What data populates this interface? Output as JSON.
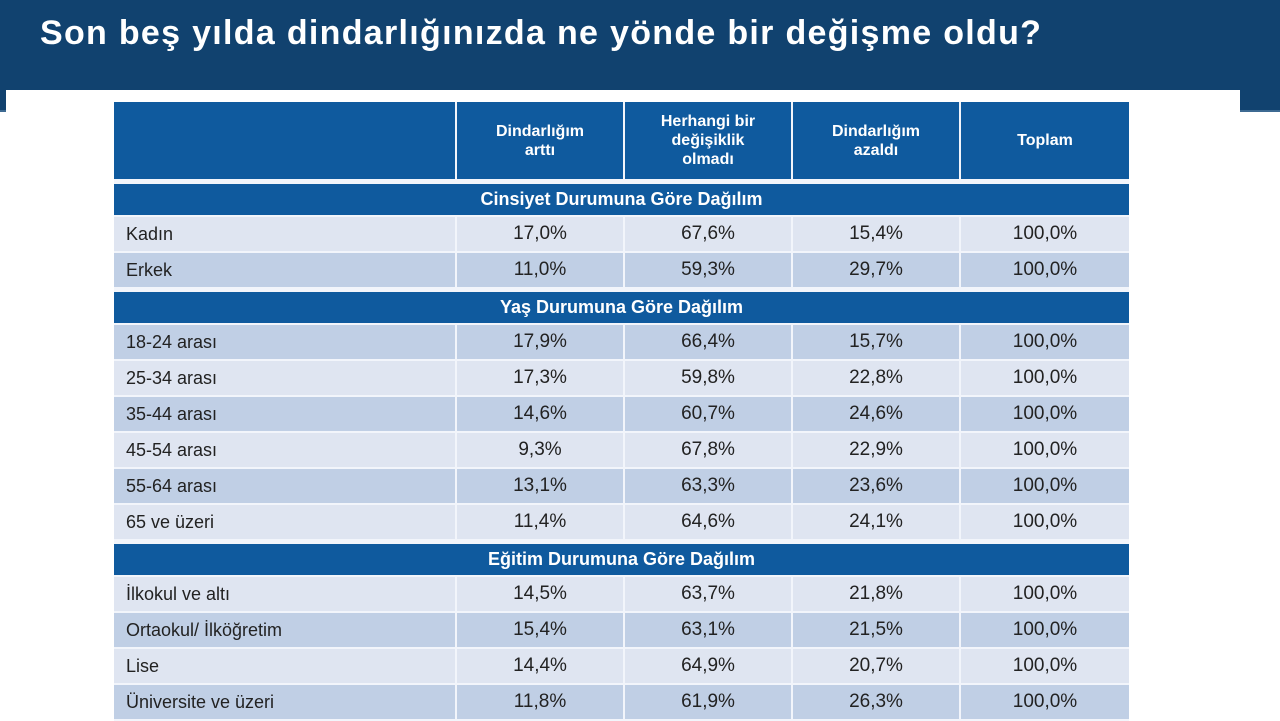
{
  "title": "Son beş yılda dindarlığınızda ne yönde bir değişme oldu?",
  "colors": {
    "title_bar": "#11426f",
    "header_blue": "#0f5a9e",
    "row_light": "#dfe5f1",
    "row_dark": "#c0cfe5"
  },
  "table": {
    "headers": [
      "",
      "Dindarlığım\narttı",
      "Herhangi bir\ndeğişiklik\nolmadı",
      "Dindarlığım\nazaldı",
      "Toplam"
    ],
    "sections": [
      {
        "title": "Cinsiyet Durumuna Göre Dağılım",
        "rows": [
          {
            "label": "Kadın",
            "values": [
              "17,0%",
              "67,6%",
              "15,4%",
              "100,0%"
            ]
          },
          {
            "label": "Erkek",
            "values": [
              "11,0%",
              "59,3%",
              "29,7%",
              "100,0%"
            ]
          }
        ]
      },
      {
        "title": "Yaş Durumuna Göre Dağılım",
        "rows": [
          {
            "label": "18-24 arası",
            "values": [
              "17,9%",
              "66,4%",
              "15,7%",
              "100,0%"
            ]
          },
          {
            "label": "25-34 arası",
            "values": [
              "17,3%",
              "59,8%",
              "22,8%",
              "100,0%"
            ]
          },
          {
            "label": "35-44 arası",
            "values": [
              "14,6%",
              "60,7%",
              "24,6%",
              "100,0%"
            ]
          },
          {
            "label": "45-54 arası",
            "values": [
              "9,3%",
              "67,8%",
              "22,9%",
              "100,0%"
            ]
          },
          {
            "label": "55-64 arası",
            "values": [
              "13,1%",
              "63,3%",
              "23,6%",
              "100,0%"
            ]
          },
          {
            "label": "65 ve üzeri",
            "values": [
              "11,4%",
              "64,6%",
              "24,1%",
              "100,0%"
            ]
          }
        ]
      },
      {
        "title": "Eğitim Durumuna Göre Dağılım",
        "rows": [
          {
            "label": "İlkokul ve altı",
            "values": [
              "14,5%",
              "63,7%",
              "21,8%",
              "100,0%"
            ]
          },
          {
            "label": "Ortaokul/ İlköğretim",
            "values": [
              "15,4%",
              "63,1%",
              "21,5%",
              "100,0%"
            ]
          },
          {
            "label": "Lise",
            "values": [
              "14,4%",
              "64,9%",
              "20,7%",
              "100,0%"
            ]
          },
          {
            "label": "Üniversite ve üzeri",
            "values": [
              "11,8%",
              "61,9%",
              "26,3%",
              "100,0%"
            ]
          }
        ]
      }
    ]
  }
}
